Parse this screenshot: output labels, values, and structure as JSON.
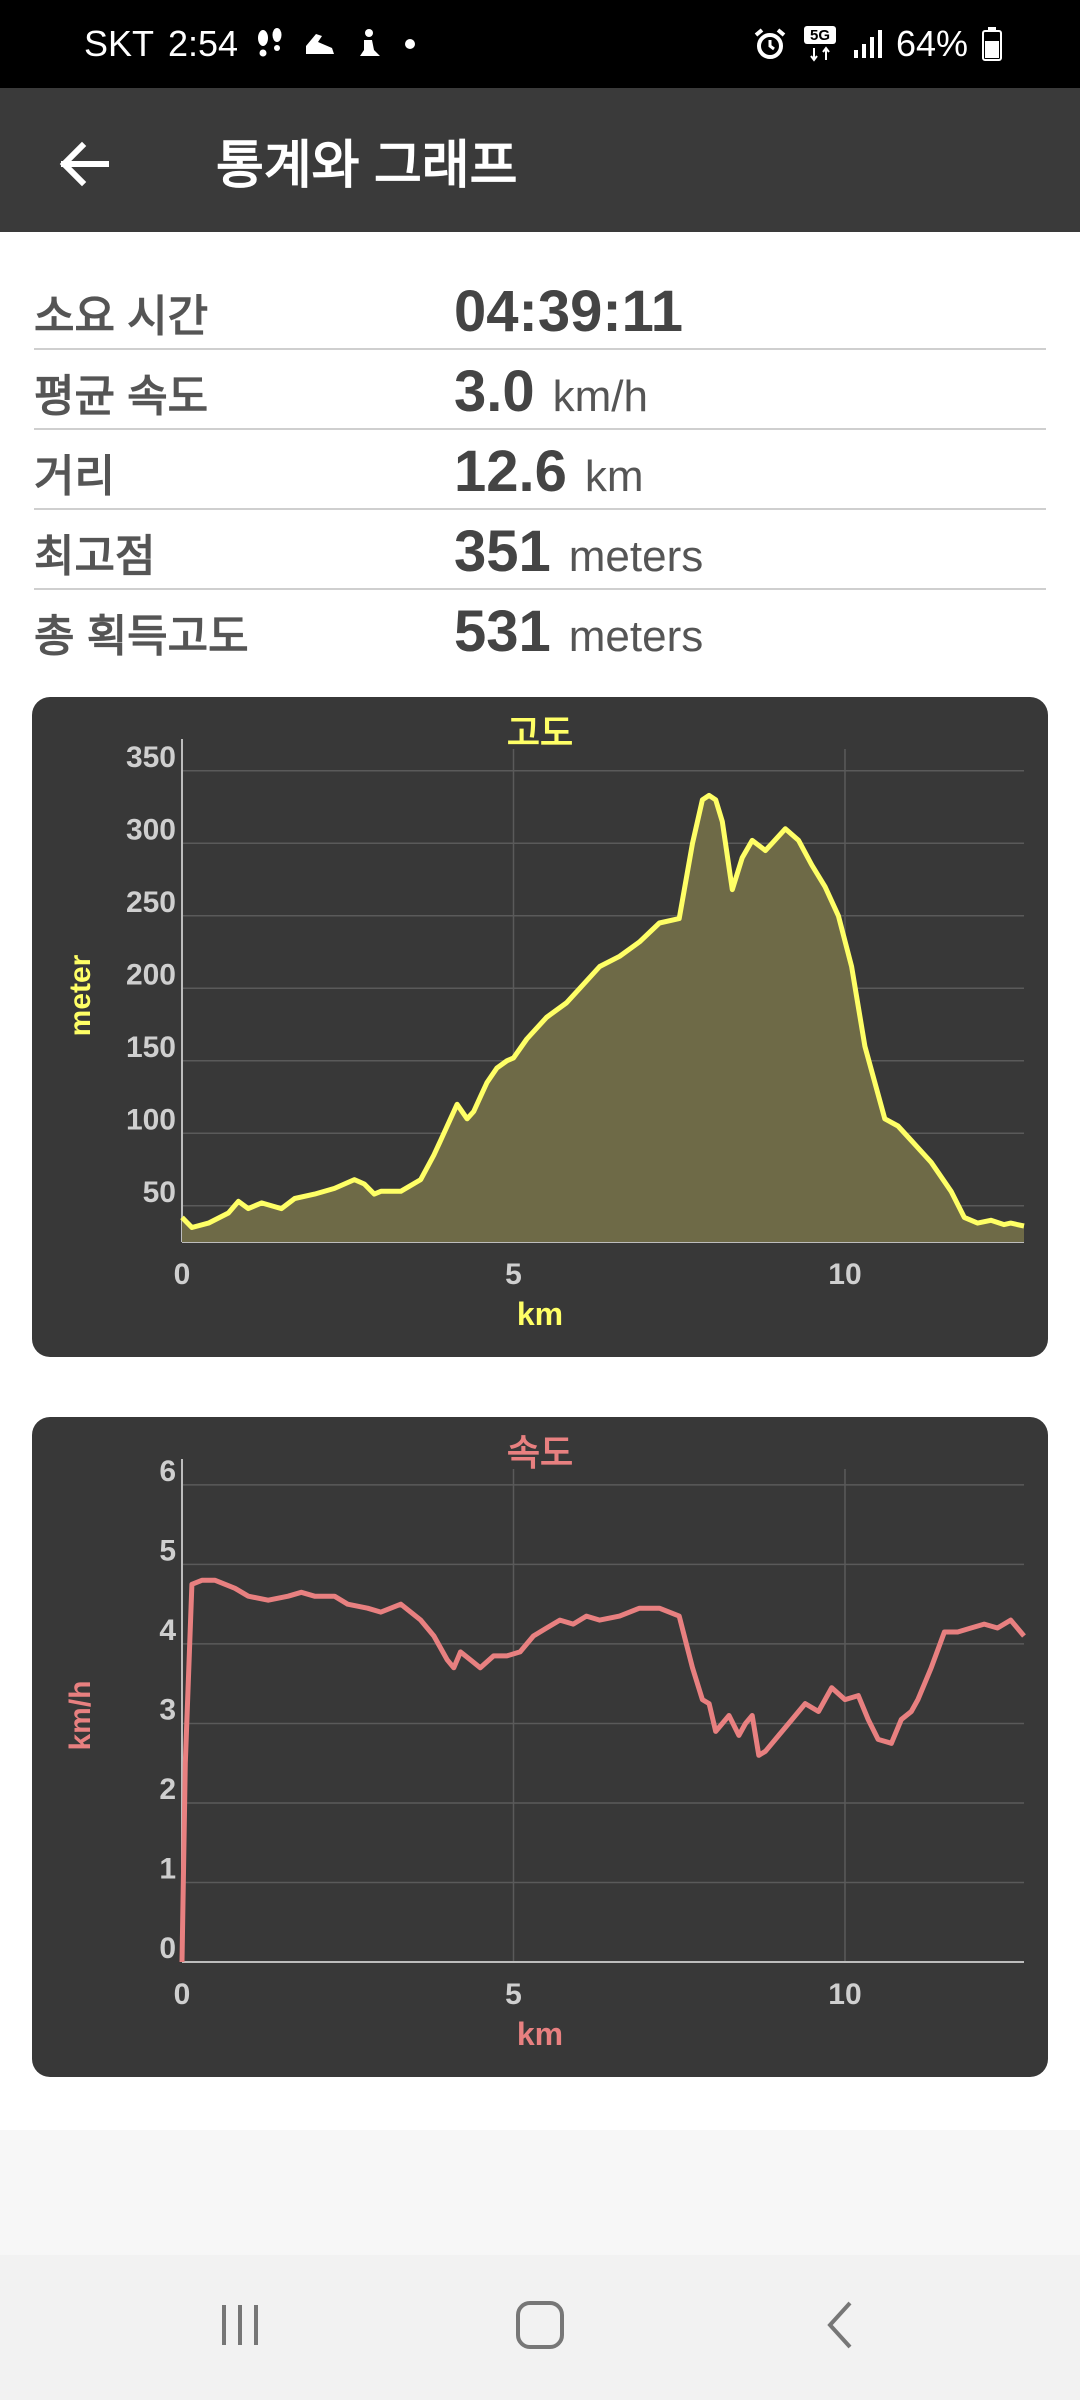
{
  "status_bar": {
    "carrier": "SKT",
    "time": "2:54",
    "network": "5G",
    "battery": "64%",
    "left_icons": [
      "footprints-icon",
      "shoe-icon",
      "sitting-person-icon",
      "dot-icon"
    ],
    "right_icons": [
      "alarm-icon",
      "5g-icon",
      "signal-icon",
      "battery-icon"
    ]
  },
  "app_bar": {
    "title": "통계와 그래프",
    "back_icon": "arrow-left-icon"
  },
  "stats": [
    {
      "label": "소요 시간",
      "value": "04:39:11",
      "unit": ""
    },
    {
      "label": "평균 속도",
      "value": "3.0",
      "unit": "km/h"
    },
    {
      "label": "거리",
      "value": "12.6",
      "unit": "km"
    },
    {
      "label": "최고점",
      "value": "351",
      "unit": "meters"
    },
    {
      "label": "총 획득고도",
      "value": "531",
      "unit": "meters"
    }
  ],
  "chart_data": [
    {
      "type": "area",
      "title": "고도",
      "xlabel": "km",
      "ylabel": "meter",
      "color": "#ffff66",
      "fill": "#6e6a47",
      "xlim": [
        0,
        12.7
      ],
      "ylim": [
        25,
        365
      ],
      "xticks": [
        0,
        5,
        10
      ],
      "yticks": [
        50,
        100,
        150,
        200,
        250,
        300,
        350
      ],
      "grid": true,
      "x": [
        0,
        0.15,
        0.4,
        0.7,
        0.85,
        1.0,
        1.2,
        1.5,
        1.7,
        2.0,
        2.3,
        2.6,
        2.75,
        2.9,
        3.0,
        3.3,
        3.6,
        3.8,
        3.9,
        4.0,
        4.15,
        4.3,
        4.4,
        4.5,
        4.6,
        4.75,
        4.9,
        5.0,
        5.2,
        5.5,
        5.8,
        6.0,
        6.3,
        6.6,
        6.9,
        7.2,
        7.5,
        7.7,
        7.85,
        7.95,
        8.05,
        8.15,
        8.3,
        8.45,
        8.6,
        8.8,
        8.9,
        9.1,
        9.3,
        9.5,
        9.7,
        9.9,
        10.1,
        10.3,
        10.6,
        10.8,
        11.0,
        11.3,
        11.6,
        11.8,
        12.0,
        12.2,
        12.4,
        12.5,
        12.7
      ],
      "y": [
        42,
        35,
        38,
        45,
        53,
        48,
        52,
        48,
        55,
        58,
        62,
        68,
        65,
        58,
        60,
        60,
        68,
        85,
        95,
        105,
        120,
        110,
        115,
        125,
        135,
        145,
        150,
        152,
        165,
        180,
        190,
        200,
        215,
        222,
        232,
        245,
        248,
        300,
        330,
        333,
        330,
        315,
        268,
        290,
        302,
        295,
        300,
        310,
        302,
        285,
        270,
        250,
        215,
        160,
        110,
        105,
        95,
        80,
        60,
        42,
        38,
        40,
        37,
        38,
        36
      ]
    },
    {
      "type": "line",
      "title": "속도",
      "xlabel": "km",
      "ylabel": "km/h",
      "color": "#e88080",
      "xlim": [
        0,
        12.7
      ],
      "ylim": [
        0,
        6.2
      ],
      "xticks": [
        0,
        5,
        10
      ],
      "yticks": [
        0,
        1,
        2,
        3,
        4,
        5,
        6
      ],
      "grid": true,
      "x": [
        0,
        0.05,
        0.15,
        0.3,
        0.5,
        0.8,
        1.0,
        1.3,
        1.6,
        1.8,
        2.0,
        2.3,
        2.5,
        2.8,
        3.0,
        3.3,
        3.6,
        3.8,
        4.0,
        4.1,
        4.2,
        4.35,
        4.5,
        4.7,
        4.9,
        5.1,
        5.3,
        5.5,
        5.7,
        5.9,
        6.1,
        6.3,
        6.6,
        6.9,
        7.2,
        7.5,
        7.7,
        7.85,
        7.95,
        8.05,
        8.15,
        8.25,
        8.4,
        8.5,
        8.6,
        8.7,
        8.8,
        9.0,
        9.2,
        9.4,
        9.6,
        9.8,
        10.0,
        10.2,
        10.35,
        10.5,
        10.7,
        10.85,
        11.0,
        11.1,
        11.3,
        11.5,
        11.7,
        11.9,
        12.1,
        12.3,
        12.5,
        12.7
      ],
      "y": [
        0,
        2.5,
        4.75,
        4.8,
        4.8,
        4.7,
        4.6,
        4.55,
        4.6,
        4.65,
        4.6,
        4.6,
        4.5,
        4.45,
        4.4,
        4.5,
        4.3,
        4.1,
        3.8,
        3.7,
        3.9,
        3.8,
        3.7,
        3.85,
        3.85,
        3.9,
        4.1,
        4.2,
        4.3,
        4.25,
        4.35,
        4.3,
        4.35,
        4.45,
        4.45,
        4.35,
        3.7,
        3.3,
        3.25,
        2.9,
        3.0,
        3.1,
        2.85,
        3.0,
        3.1,
        2.6,
        2.65,
        2.85,
        3.05,
        3.25,
        3.15,
        3.45,
        3.3,
        3.35,
        3.05,
        2.8,
        2.75,
        3.05,
        3.15,
        3.3,
        3.7,
        4.15,
        4.15,
        4.2,
        4.25,
        4.2,
        4.3,
        4.1
      ]
    }
  ],
  "nav_bar": {
    "items": [
      "recent-apps-icon",
      "home-icon",
      "back-nav-icon"
    ]
  }
}
